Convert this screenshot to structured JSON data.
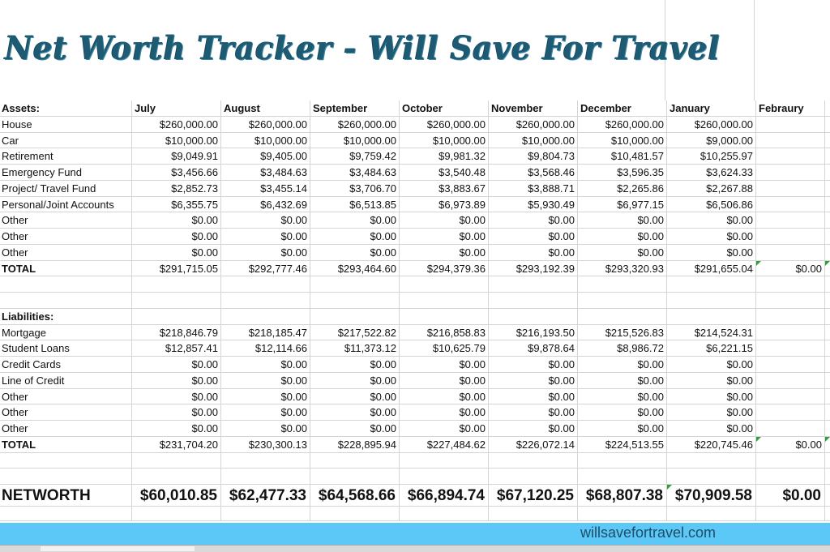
{
  "title": "Net Worth Tracker - Will Save For Travel",
  "months": [
    "July",
    "August",
    "September",
    "October",
    "November",
    "December",
    "January",
    "Febraury",
    ""
  ],
  "assets": {
    "heading": "Assets:",
    "rows": [
      {
        "label": "House",
        "values": [
          "$260,000.00",
          "$260,000.00",
          "$260,000.00",
          "$260,000.00",
          "$260,000.00",
          "$260,000.00",
          "$260,000.00",
          "",
          ""
        ]
      },
      {
        "label": "Car",
        "values": [
          "$10,000.00",
          "$10,000.00",
          "$10,000.00",
          "$10,000.00",
          "$10,000.00",
          "$10,000.00",
          "$9,000.00",
          "",
          ""
        ]
      },
      {
        "label": "Retirement",
        "values": [
          "$9,049.91",
          "$9,405.00",
          "$9,759.42",
          "$9,981.32",
          "$9,804.73",
          "$10,481.57",
          "$10,255.97",
          "",
          ""
        ]
      },
      {
        "label": "Emergency Fund",
        "values": [
          "$3,456.66",
          "$3,484.63",
          "$3,484.63",
          "$3,540.48",
          "$3,568.46",
          "$3,596.35",
          "$3,624.33",
          "",
          ""
        ]
      },
      {
        "label": "Project/ Travel Fund",
        "values": [
          "$2,852.73",
          "$3,455.14",
          "$3,706.70",
          "$3,883.67",
          "$3,888.71",
          "$2,265.86",
          "$2,267.88",
          "",
          ""
        ]
      },
      {
        "label": "Personal/Joint Accounts",
        "values": [
          "$6,355.75",
          "$6,432.69",
          "$6,513.85",
          "$6,973.89",
          "$5,930.49",
          "$6,977.15",
          "$6,506.86",
          "",
          ""
        ]
      },
      {
        "label": "Other",
        "values": [
          "$0.00",
          "$0.00",
          "$0.00",
          "$0.00",
          "$0.00",
          "$0.00",
          "$0.00",
          "",
          ""
        ]
      },
      {
        "label": "Other",
        "values": [
          "$0.00",
          "$0.00",
          "$0.00",
          "$0.00",
          "$0.00",
          "$0.00",
          "$0.00",
          "",
          ""
        ]
      },
      {
        "label": "Other",
        "values": [
          "$0.00",
          "$0.00",
          "$0.00",
          "$0.00",
          "$0.00",
          "$0.00",
          "$0.00",
          "",
          ""
        ]
      }
    ],
    "total": {
      "label": "TOTAL",
      "values": [
        "$291,715.05",
        "$292,777.46",
        "$293,464.60",
        "$294,379.36",
        "$293,192.39",
        "$293,320.93",
        "$291,655.04",
        "$0.00",
        ""
      ]
    }
  },
  "liabilities": {
    "heading": "Liabilities:",
    "rows": [
      {
        "label": "Mortgage",
        "values": [
          "$218,846.79",
          "$218,185.47",
          "$217,522.82",
          "$216,858.83",
          "$216,193.50",
          "$215,526.83",
          "$214,524.31",
          "",
          ""
        ]
      },
      {
        "label": "Student Loans",
        "values": [
          "$12,857.41",
          "$12,114.66",
          "$11,373.12",
          "$10,625.79",
          "$9,878.64",
          "$8,986.72",
          "$6,221.15",
          "",
          ""
        ]
      },
      {
        "label": "Credit Cards",
        "values": [
          "$0.00",
          "$0.00",
          "$0.00",
          "$0.00",
          "$0.00",
          "$0.00",
          "$0.00",
          "",
          ""
        ]
      },
      {
        "label": "Line of Credit",
        "values": [
          "$0.00",
          "$0.00",
          "$0.00",
          "$0.00",
          "$0.00",
          "$0.00",
          "$0.00",
          "",
          ""
        ]
      },
      {
        "label": "Other",
        "values": [
          "$0.00",
          "$0.00",
          "$0.00",
          "$0.00",
          "$0.00",
          "$0.00",
          "$0.00",
          "",
          ""
        ]
      },
      {
        "label": "Other",
        "values": [
          "$0.00",
          "$0.00",
          "$0.00",
          "$0.00",
          "$0.00",
          "$0.00",
          "$0.00",
          "",
          ""
        ]
      },
      {
        "label": "Other",
        "values": [
          "$0.00",
          "$0.00",
          "$0.00",
          "$0.00",
          "$0.00",
          "$0.00",
          "$0.00",
          "",
          ""
        ]
      }
    ],
    "total": {
      "label": "TOTAL",
      "values": [
        "$231,704.20",
        "$230,300.13",
        "$228,895.94",
        "$227,484.62",
        "$226,072.14",
        "$224,513.55",
        "$220,745.46",
        "$0.00",
        ""
      ]
    }
  },
  "networth": {
    "label": "NETWORTH",
    "values": [
      "$60,010.85",
      "$62,477.33",
      "$64,568.66",
      "$66,894.74",
      "$67,120.25",
      "$68,807.38",
      "$70,909.58",
      "$0.00",
      ""
    ]
  },
  "footer": {
    "site": "willsavefortravel.com"
  },
  "colors": {
    "title": "#1f5a73",
    "band": "#5bc8f8",
    "comment_flag": "#2e9e3e"
  }
}
